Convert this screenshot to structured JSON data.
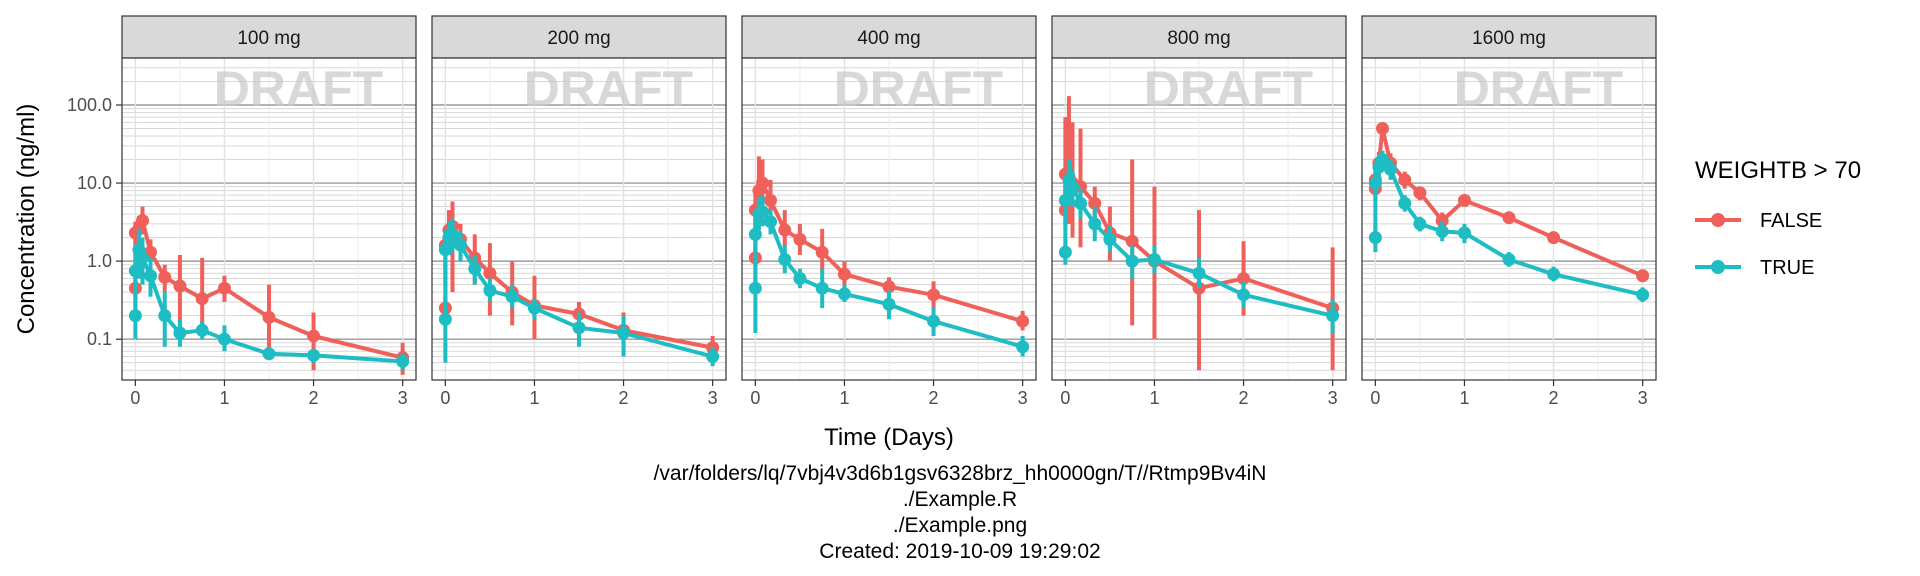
{
  "chart_data": {
    "type": "line",
    "ylabel": "Concentration (ng/ml)",
    "xlabel": "Time (Days)",
    "y_scale": "log10",
    "ylim": [
      0.03,
      400
    ],
    "xlim": [
      -0.15,
      3.15
    ],
    "x_ticks": [
      0,
      1,
      2,
      3
    ],
    "y_ticks": [
      0.1,
      1.0,
      10.0,
      100.0
    ],
    "y_tick_labels": [
      "0.1",
      "1.0",
      "10.0",
      "100.0"
    ],
    "watermark": "DRAFT",
    "grid": true,
    "legend_position": "right",
    "legend": {
      "title": "WEIGHTB > 70",
      "items": [
        {
          "label": "FALSE",
          "color": "#f0605a"
        },
        {
          "label": "TRUE",
          "color": "#1ebcc3"
        }
      ]
    },
    "panels": [
      {
        "label": "100 mg",
        "series": [
          {
            "name": "FALSE",
            "points": [
              {
                "x": 0,
                "y": 0.45,
                "lo": 0.35,
                "hi": 0.6
              },
              {
                "x": 0,
                "y": 2.3,
                "lo": 1.6,
                "hi": 3.2
              },
              {
                "x": 0.04,
                "y": 2.6,
                "lo": 1.8,
                "hi": 3.8
              },
              {
                "x": 0.08,
                "y": 3.3,
                "lo": 2.2,
                "hi": 5.0
              },
              {
                "x": 0.17,
                "y": 1.3,
                "lo": 0.9,
                "hi": 1.9
              },
              {
                "x": 0.33,
                "y": 0.62,
                "lo": 0.4,
                "hi": 0.9
              },
              {
                "x": 0.5,
                "y": 0.48,
                "lo": 0.13,
                "hi": 1.2
              },
              {
                "x": 0.75,
                "y": 0.33,
                "lo": 0.12,
                "hi": 1.1
              },
              {
                "x": 1,
                "y": 0.45,
                "lo": 0.3,
                "hi": 0.65
              },
              {
                "x": 1.5,
                "y": 0.19,
                "lo": 0.06,
                "hi": 0.5
              },
              {
                "x": 2,
                "y": 0.11,
                "lo": 0.04,
                "hi": 0.22
              },
              {
                "x": 3,
                "y": 0.058,
                "lo": 0.035,
                "hi": 0.09
              }
            ]
          },
          {
            "name": "TRUE",
            "points": [
              {
                "x": 0,
                "y": 0.2,
                "lo": 0.1,
                "hi": 0.4
              },
              {
                "x": 0,
                "y": 0.75,
                "lo": 0.4,
                "hi": 1.4
              },
              {
                "x": 0.04,
                "y": 1.4,
                "lo": 0.6,
                "hi": 2.6
              },
              {
                "x": 0.08,
                "y": 1.1,
                "lo": 0.5,
                "hi": 2.0
              },
              {
                "x": 0.17,
                "y": 0.65,
                "lo": 0.35,
                "hi": 1.1
              },
              {
                "x": 0.33,
                "y": 0.2,
                "lo": 0.08,
                "hi": 0.4
              },
              {
                "x": 0.5,
                "y": 0.12,
                "lo": 0.08,
                "hi": 0.18
              },
              {
                "x": 0.75,
                "y": 0.13,
                "lo": 0.1,
                "hi": 0.17
              },
              {
                "x": 1,
                "y": 0.1,
                "lo": 0.07,
                "hi": 0.15
              },
              {
                "x": 1.5,
                "y": 0.065,
                "lo": 0.06,
                "hi": 0.07
              },
              {
                "x": 2,
                "y": 0.062,
                "lo": 0.05,
                "hi": 0.075
              },
              {
                "x": 3,
                "y": 0.052,
                "lo": 0.04,
                "hi": 0.065
              }
            ]
          }
        ]
      },
      {
        "label": "200 mg",
        "series": [
          {
            "name": "FALSE",
            "points": [
              {
                "x": 0,
                "y": 0.25,
                "lo": 0.15,
                "hi": 0.35
              },
              {
                "x": 0,
                "y": 1.6,
                "lo": 0.5,
                "hi": 2.6
              },
              {
                "x": 0.04,
                "y": 2.5,
                "lo": 1.2,
                "hi": 4.5
              },
              {
                "x": 0.08,
                "y": 2.8,
                "lo": 0.4,
                "hi": 5.8
              },
              {
                "x": 0.17,
                "y": 1.9,
                "lo": 1.0,
                "hi": 3.0
              },
              {
                "x": 0.33,
                "y": 1.1,
                "lo": 0.5,
                "hi": 2.2
              },
              {
                "x": 0.5,
                "y": 0.7,
                "lo": 0.2,
                "hi": 1.7
              },
              {
                "x": 0.75,
                "y": 0.4,
                "lo": 0.15,
                "hi": 1.0
              },
              {
                "x": 1,
                "y": 0.27,
                "lo": 0.1,
                "hi": 0.65
              },
              {
                "x": 1.5,
                "y": 0.21,
                "lo": 0.12,
                "hi": 0.3
              },
              {
                "x": 2,
                "y": 0.13,
                "lo": 0.07,
                "hi": 0.22
              },
              {
                "x": 3,
                "y": 0.078,
                "lo": 0.05,
                "hi": 0.11
              }
            ]
          },
          {
            "name": "TRUE",
            "points": [
              {
                "x": 0,
                "y": 0.18,
                "lo": 0.05,
                "hi": 0.3
              },
              {
                "x": 0,
                "y": 1.4,
                "lo": 0.8,
                "hi": 2.5
              },
              {
                "x": 0.04,
                "y": 2.0,
                "lo": 1.2,
                "hi": 3.2
              },
              {
                "x": 0.08,
                "y": 2.2,
                "lo": 1.3,
                "hi": 3.5
              },
              {
                "x": 0.17,
                "y": 1.6,
                "lo": 1.0,
                "hi": 2.4
              },
              {
                "x": 0.33,
                "y": 0.8,
                "lo": 0.5,
                "hi": 1.2
              },
              {
                "x": 0.5,
                "y": 0.42,
                "lo": 0.3,
                "hi": 0.6
              },
              {
                "x": 0.75,
                "y": 0.35,
                "lo": 0.25,
                "hi": 0.5
              },
              {
                "x": 1,
                "y": 0.25,
                "lo": 0.18,
                "hi": 0.33
              },
              {
                "x": 1.5,
                "y": 0.14,
                "lo": 0.08,
                "hi": 0.22
              },
              {
                "x": 2,
                "y": 0.12,
                "lo": 0.06,
                "hi": 0.2
              },
              {
                "x": 3,
                "y": 0.06,
                "lo": 0.045,
                "hi": 0.08
              }
            ]
          }
        ]
      },
      {
        "label": "400 mg",
        "series": [
          {
            "name": "FALSE",
            "points": [
              {
                "x": 0,
                "y": 1.1,
                "lo": 0.7,
                "hi": 1.6
              },
              {
                "x": 0,
                "y": 4.5,
                "lo": 2.5,
                "hi": 8.0
              },
              {
                "x": 0.04,
                "y": 8.0,
                "lo": 3.0,
                "hi": 22.0
              },
              {
                "x": 0.08,
                "y": 10.0,
                "lo": 4.0,
                "hi": 20.0
              },
              {
                "x": 0.17,
                "y": 6.0,
                "lo": 3.0,
                "hi": 11.0
              },
              {
                "x": 0.33,
                "y": 2.5,
                "lo": 1.5,
                "hi": 4.5
              },
              {
                "x": 0.5,
                "y": 1.9,
                "lo": 1.2,
                "hi": 3.0
              },
              {
                "x": 0.75,
                "y": 1.3,
                "lo": 0.7,
                "hi": 2.6
              },
              {
                "x": 1,
                "y": 0.68,
                "lo": 0.45,
                "hi": 1.0
              },
              {
                "x": 1.5,
                "y": 0.47,
                "lo": 0.35,
                "hi": 0.62
              },
              {
                "x": 2,
                "y": 0.37,
                "lo": 0.25,
                "hi": 0.55
              },
              {
                "x": 3,
                "y": 0.17,
                "lo": 0.13,
                "hi": 0.23
              }
            ]
          },
          {
            "name": "TRUE",
            "points": [
              {
                "x": 0,
                "y": 0.45,
                "lo": 0.12,
                "hi": 0.7
              },
              {
                "x": 0,
                "y": 2.2,
                "lo": 1.0,
                "hi": 4.0
              },
              {
                "x": 0.04,
                "y": 4.0,
                "lo": 2.5,
                "hi": 6.5
              },
              {
                "x": 0.08,
                "y": 4.3,
                "lo": 2.8,
                "hi": 7.0
              },
              {
                "x": 0.17,
                "y": 3.2,
                "lo": 2.2,
                "hi": 4.5
              },
              {
                "x": 0.33,
                "y": 1.05,
                "lo": 0.7,
                "hi": 1.6
              },
              {
                "x": 0.5,
                "y": 0.6,
                "lo": 0.45,
                "hi": 0.8
              },
              {
                "x": 0.75,
                "y": 0.45,
                "lo": 0.25,
                "hi": 0.8
              },
              {
                "x": 1,
                "y": 0.38,
                "lo": 0.3,
                "hi": 0.5
              },
              {
                "x": 1.5,
                "y": 0.28,
                "lo": 0.18,
                "hi": 0.42
              },
              {
                "x": 2,
                "y": 0.17,
                "lo": 0.11,
                "hi": 0.26
              },
              {
                "x": 3,
                "y": 0.08,
                "lo": 0.06,
                "hi": 0.11
              }
            ]
          }
        ]
      },
      {
        "label": "800 mg",
        "series": [
          {
            "name": "FALSE",
            "points": [
              {
                "x": 0,
                "y": 4.5,
                "lo": 2.5,
                "hi": 9.0
              },
              {
                "x": 0,
                "y": 13.0,
                "lo": 5.0,
                "hi": 70.0
              },
              {
                "x": 0.04,
                "y": 12.0,
                "lo": 3.0,
                "hi": 130.0
              },
              {
                "x": 0.08,
                "y": 10.0,
                "lo": 2.0,
                "hi": 60.0
              },
              {
                "x": 0.17,
                "y": 9.0,
                "lo": 1.5,
                "hi": 50.0
              },
              {
                "x": 0.33,
                "y": 5.5,
                "lo": 3.0,
                "hi": 9.0
              },
              {
                "x": 0.5,
                "y": 2.3,
                "lo": 1.0,
                "hi": 5.0
              },
              {
                "x": 0.75,
                "y": 1.8,
                "lo": 0.15,
                "hi": 20.0
              },
              {
                "x": 1,
                "y": 1.0,
                "lo": 0.1,
                "hi": 9.0
              },
              {
                "x": 1.5,
                "y": 0.45,
                "lo": 0.04,
                "hi": 4.5
              },
              {
                "x": 2,
                "y": 0.6,
                "lo": 0.2,
                "hi": 1.8
              },
              {
                "x": 3,
                "y": 0.25,
                "lo": 0.04,
                "hi": 1.5
              }
            ]
          },
          {
            "name": "TRUE",
            "points": [
              {
                "x": 0,
                "y": 1.3,
                "lo": 0.9,
                "hi": 2.0
              },
              {
                "x": 0,
                "y": 6.0,
                "lo": 3.0,
                "hi": 12.0
              },
              {
                "x": 0.04,
                "y": 11.0,
                "lo": 6.0,
                "hi": 20.0
              },
              {
                "x": 0.08,
                "y": 9.0,
                "lo": 5.0,
                "hi": 15.0
              },
              {
                "x": 0.17,
                "y": 5.5,
                "lo": 3.5,
                "hi": 8.5
              },
              {
                "x": 0.33,
                "y": 3.0,
                "lo": 1.8,
                "hi": 5.0
              },
              {
                "x": 0.5,
                "y": 1.9,
                "lo": 1.3,
                "hi": 2.8
              },
              {
                "x": 0.75,
                "y": 1.0,
                "lo": 0.6,
                "hi": 1.6
              },
              {
                "x": 1,
                "y": 1.05,
                "lo": 0.7,
                "hi": 1.6
              },
              {
                "x": 1.5,
                "y": 0.7,
                "lo": 0.45,
                "hi": 1.1
              },
              {
                "x": 2,
                "y": 0.37,
                "lo": 0.25,
                "hi": 0.55
              },
              {
                "x": 3,
                "y": 0.2,
                "lo": 0.12,
                "hi": 0.32
              }
            ]
          }
        ]
      },
      {
        "label": "1600 mg",
        "series": [
          {
            "name": "FALSE",
            "points": [
              {
                "x": 0,
                "y": 8.5,
                "lo": 6.0,
                "hi": 12.0
              },
              {
                "x": 0,
                "y": 11.0,
                "lo": 8.0,
                "hi": 15.0
              },
              {
                "x": 0.04,
                "y": 18.0,
                "lo": 12.0,
                "hi": 25.0
              },
              {
                "x": 0.08,
                "y": 50.0,
                "lo": 40.0,
                "hi": 60.0
              },
              {
                "x": 0.17,
                "y": 18.0,
                "lo": 13.0,
                "hi": 24.0
              },
              {
                "x": 0.33,
                "y": 11.0,
                "lo": 8.5,
                "hi": 14.0
              },
              {
                "x": 0.5,
                "y": 7.5,
                "lo": 6.0,
                "hi": 9.0
              },
              {
                "x": 0.75,
                "y": 3.3,
                "lo": 2.6,
                "hi": 4.2
              },
              {
                "x": 1,
                "y": 6.0,
                "lo": 5.0,
                "hi": 7.0
              },
              {
                "x": 1.5,
                "y": 3.6,
                "lo": 3.0,
                "hi": 4.3
              },
              {
                "x": 2,
                "y": 2.0,
                "lo": 1.7,
                "hi": 2.4
              },
              {
                "x": 3,
                "y": 0.65,
                "lo": 0.55,
                "hi": 0.75
              }
            ]
          },
          {
            "name": "TRUE",
            "points": [
              {
                "x": 0,
                "y": 2.0,
                "lo": 1.3,
                "hi": 3.0
              },
              {
                "x": 0,
                "y": 10.0,
                "lo": 7.0,
                "hi": 14.0
              },
              {
                "x": 0.04,
                "y": 16.0,
                "lo": 11.0,
                "hi": 22.0
              },
              {
                "x": 0.08,
                "y": 20.0,
                "lo": 15.0,
                "hi": 26.0
              },
              {
                "x": 0.17,
                "y": 15.0,
                "lo": 11.0,
                "hi": 20.0
              },
              {
                "x": 0.33,
                "y": 5.5,
                "lo": 4.3,
                "hi": 7.0
              },
              {
                "x": 0.5,
                "y": 3.0,
                "lo": 2.4,
                "hi": 3.7
              },
              {
                "x": 0.75,
                "y": 2.4,
                "lo": 1.8,
                "hi": 3.2
              },
              {
                "x": 1,
                "y": 2.3,
                "lo": 1.7,
                "hi": 3.0
              },
              {
                "x": 1.5,
                "y": 1.05,
                "lo": 0.85,
                "hi": 1.3
              },
              {
                "x": 2,
                "y": 0.68,
                "lo": 0.55,
                "hi": 0.85
              },
              {
                "x": 3,
                "y": 0.37,
                "lo": 0.3,
                "hi": 0.46
              }
            ]
          }
        ]
      }
    ]
  },
  "caption": {
    "line1": "/var/folders/lq/7vbj4v3d6b1gsv6328brz_hh0000gn/T//Rtmp9Bv4iN",
    "line2": "./Example.R",
    "line3": "./Example.png",
    "line4": "Created: 2019-10-09 19:29:02"
  }
}
